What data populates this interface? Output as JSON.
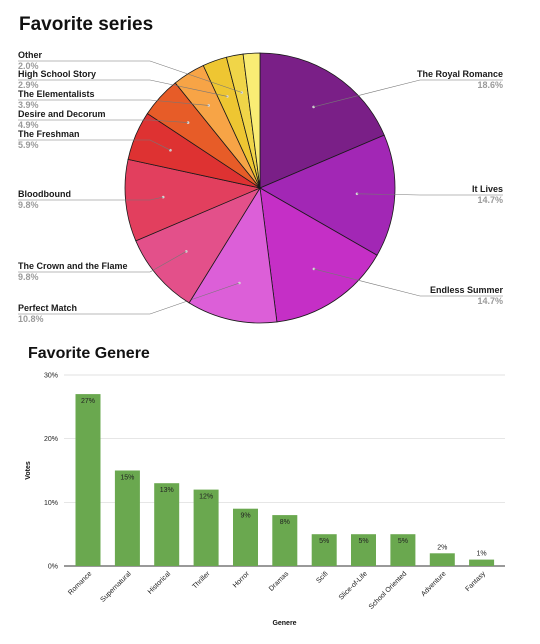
{
  "chart_data": [
    {
      "type": "pie",
      "title": "Favorite series",
      "slices": [
        {
          "label": "The Royal Romance",
          "value": 18.6,
          "pct_text": "18.6%",
          "color": "#7a1f87"
        },
        {
          "label": "It Lives",
          "value": 14.7,
          "pct_text": "14.7%",
          "color": "#a227b5"
        },
        {
          "label": "Endless Summer",
          "value": 14.7,
          "pct_text": "14.7%",
          "color": "#c52fc6"
        },
        {
          "label": "Perfect Match",
          "value": 10.8,
          "pct_text": "10.8%",
          "color": "#dc5fd8"
        },
        {
          "label": "The Crown and the Flame",
          "value": 9.8,
          "pct_text": "9.8%",
          "color": "#e3508a"
        },
        {
          "label": "Bloodbound",
          "value": 9.8,
          "pct_text": "9.8%",
          "color": "#e23f5e"
        },
        {
          "label": "The Freshman",
          "value": 5.9,
          "pct_text": "5.9%",
          "color": "#de3232"
        },
        {
          "label": "Desire and Decorum",
          "value": 4.9,
          "pct_text": "4.9%",
          "color": "#e75c28"
        },
        {
          "label": "The Elementalists",
          "value": 3.9,
          "pct_text": "3.9%",
          "color": "#f7a446"
        },
        {
          "label": "High School Story",
          "value": 2.9,
          "pct_text": "2.9%",
          "color": "#eec632"
        },
        {
          "label": "Other",
          "value": 2.0,
          "pct_text": "2.0%",
          "color": "#f0d548"
        },
        {
          "label": "",
          "value": 2.0,
          "pct_text": "",
          "color": "#f9ec74"
        }
      ]
    },
    {
      "type": "bar",
      "title": "Favorite Genere",
      "xlabel": "Genere",
      "ylabel": "Votes",
      "ylim": [
        0,
        30
      ],
      "yticks": [
        "0%",
        "10%",
        "20%",
        "30%"
      ],
      "ytick_values": [
        0,
        10,
        20,
        30
      ],
      "bar_color": "#6aa84f",
      "grid": true,
      "categories": [
        "Romance",
        "Supernatural",
        "Historical",
        "Thriller",
        "Horror",
        "Dramas",
        "Scifi",
        "Slice-of-Life",
        "School Oriented",
        "Adventure",
        "Fantasy"
      ],
      "values": [
        27,
        15,
        13,
        12,
        9,
        8,
        5,
        5,
        5,
        2,
        1
      ],
      "value_labels": [
        "27%",
        "15%",
        "13%",
        "12%",
        "9%",
        "8%",
        "5%",
        "5%",
        "5%",
        "2%",
        "1%"
      ]
    }
  ]
}
